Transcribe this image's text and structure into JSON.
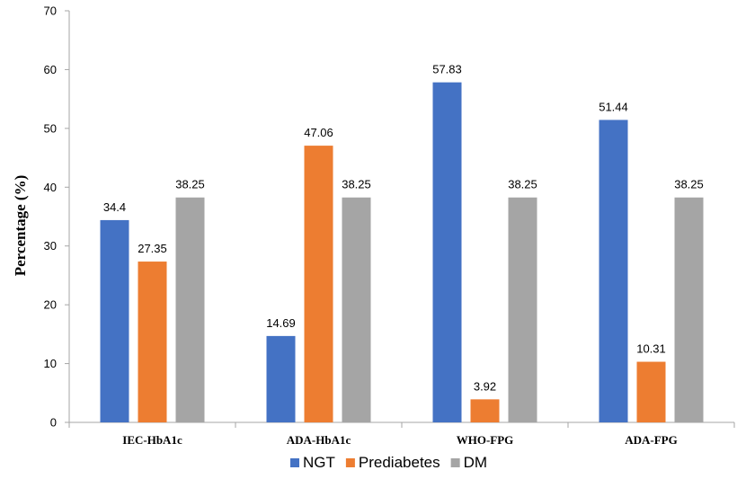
{
  "chart_data": {
    "type": "bar",
    "title": "",
    "xlabel": "",
    "ylabel": "Percentage (%)",
    "ylim": [
      0,
      70
    ],
    "yticks": [
      0,
      10,
      20,
      30,
      40,
      50,
      60,
      70
    ],
    "grid": false,
    "legend_position": "bottom",
    "categories": [
      "IEC-HbA1c",
      "ADA-HbA1c",
      "WHO-FPG",
      "ADA-FPG"
    ],
    "series": [
      {
        "name": "NGT",
        "color": "#4472C4",
        "values": [
          34.4,
          14.69,
          57.83,
          51.44
        ],
        "labels": [
          "34.4",
          "14.69",
          "57.83",
          "51.44"
        ]
      },
      {
        "name": "Prediabetes",
        "color": "#ED7D31",
        "values": [
          27.35,
          47.06,
          3.92,
          10.31
        ],
        "labels": [
          "27.35",
          "47.06",
          "3.92",
          "10.31"
        ]
      },
      {
        "name": "DM",
        "color": "#A5A5A5",
        "values": [
          38.25,
          38.25,
          38.25,
          38.25
        ],
        "labels": [
          "38.25",
          "38.25",
          "38.25",
          "38.25"
        ]
      }
    ]
  }
}
